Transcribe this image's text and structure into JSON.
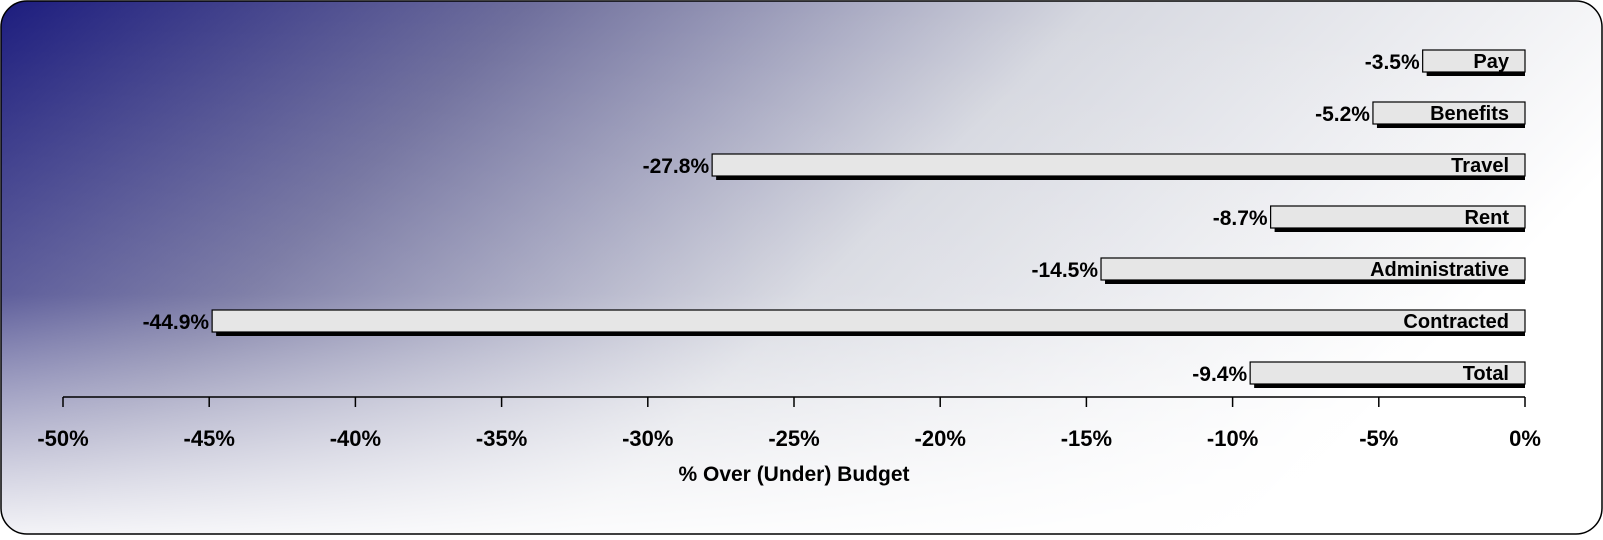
{
  "chart_data": {
    "type": "bar",
    "orientation": "horizontal",
    "categories": [
      "Pay",
      "Benefits",
      "Travel",
      "Rent",
      "Administrative",
      "Contracted",
      "Total"
    ],
    "values": [
      -3.5,
      -5.2,
      -27.8,
      -8.7,
      -14.5,
      -44.9,
      -9.4
    ],
    "data_labels": [
      "-3.5%",
      "-5.2%",
      "-27.8%",
      "-8.7%",
      "-14.5%",
      "-44.9%",
      "-9.4%"
    ],
    "xlabel": "% Over (Under) Budget",
    "x_ticks": [
      -50,
      -45,
      -40,
      -35,
      -30,
      -25,
      -20,
      -15,
      -10,
      -5,
      0
    ],
    "x_tick_labels": [
      "-50%",
      "-45%",
      "-40%",
      "-35%",
      "-30%",
      "-25%",
      "-20%",
      "-15%",
      "-10%",
      "-5%",
      "0%"
    ],
    "xlim": [
      -50,
      0
    ],
    "grid": false,
    "legend": "none",
    "colors": {
      "bar_fill": "#e6e6e6",
      "bar_border": "#000000",
      "bar_shadow": "#000000",
      "background_dark": "#1c1c7e",
      "background_light": "#ffffff",
      "frame_border": "#000000"
    }
  }
}
